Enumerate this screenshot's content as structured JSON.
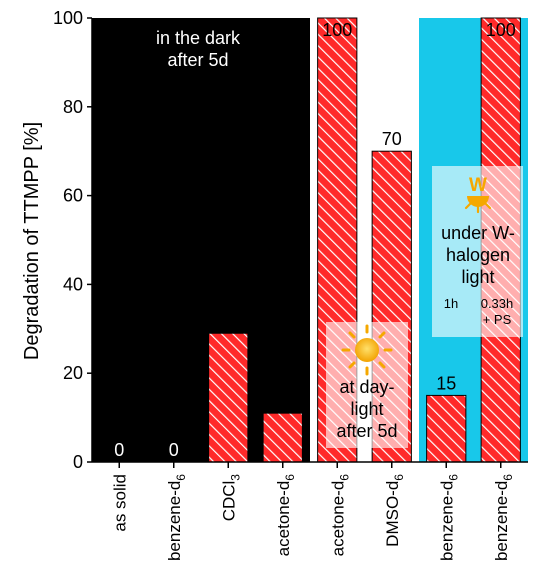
{
  "chart_data": {
    "type": "bar",
    "ylabel": "Degradation of TTMPP [%]",
    "ylim": [
      0,
      100
    ],
    "y_ticks": [
      0,
      20,
      40,
      60,
      80,
      100
    ],
    "categories": [
      {
        "main": "as solid",
        "sub": "",
        "sup": ""
      },
      {
        "main": "benzene-d",
        "sub": "6",
        "sup": ""
      },
      {
        "main": "CDCl",
        "sub": "3",
        "sup": ""
      },
      {
        "main": "acetone-d",
        "sub": "6",
        "sup": ""
      },
      {
        "main": "acetone-d",
        "sub": "6",
        "sup": ""
      },
      {
        "main": "DMSO-d",
        "sub": "6",
        "sup": ""
      },
      {
        "main": "benzene-d",
        "sub": "6",
        "sup": ""
      },
      {
        "main": "benzene-d",
        "sub": "6",
        "sup": ""
      }
    ],
    "values": [
      0,
      0,
      29,
      11,
      100,
      70,
      15,
      100
    ],
    "value_labels": [
      "0",
      "0",
      "29",
      "11",
      "100",
      "70",
      "15",
      "100"
    ],
    "regions": [
      {
        "category_range": [
          0,
          3
        ],
        "background": "#000000",
        "label_lines": [
          "in the dark",
          "after 5d"
        ]
      },
      {
        "category_range": [
          4,
          5
        ],
        "background": "#ffffff",
        "label_lines": [
          "at day-",
          "light",
          "after 5d"
        ]
      },
      {
        "category_range": [
          6,
          7
        ],
        "background": "#18c8ea",
        "label_lines": [
          "under W-",
          "halogen",
          "light"
        ],
        "sub_labels": [
          "1h",
          "0.33h",
          "+ PS"
        ]
      }
    ],
    "bar_color": "#ff2a2a",
    "bar_hatch": "white diagonal",
    "grid": false,
    "icons": [
      "sun-icon",
      "halogen-lamp-icon"
    ]
  }
}
